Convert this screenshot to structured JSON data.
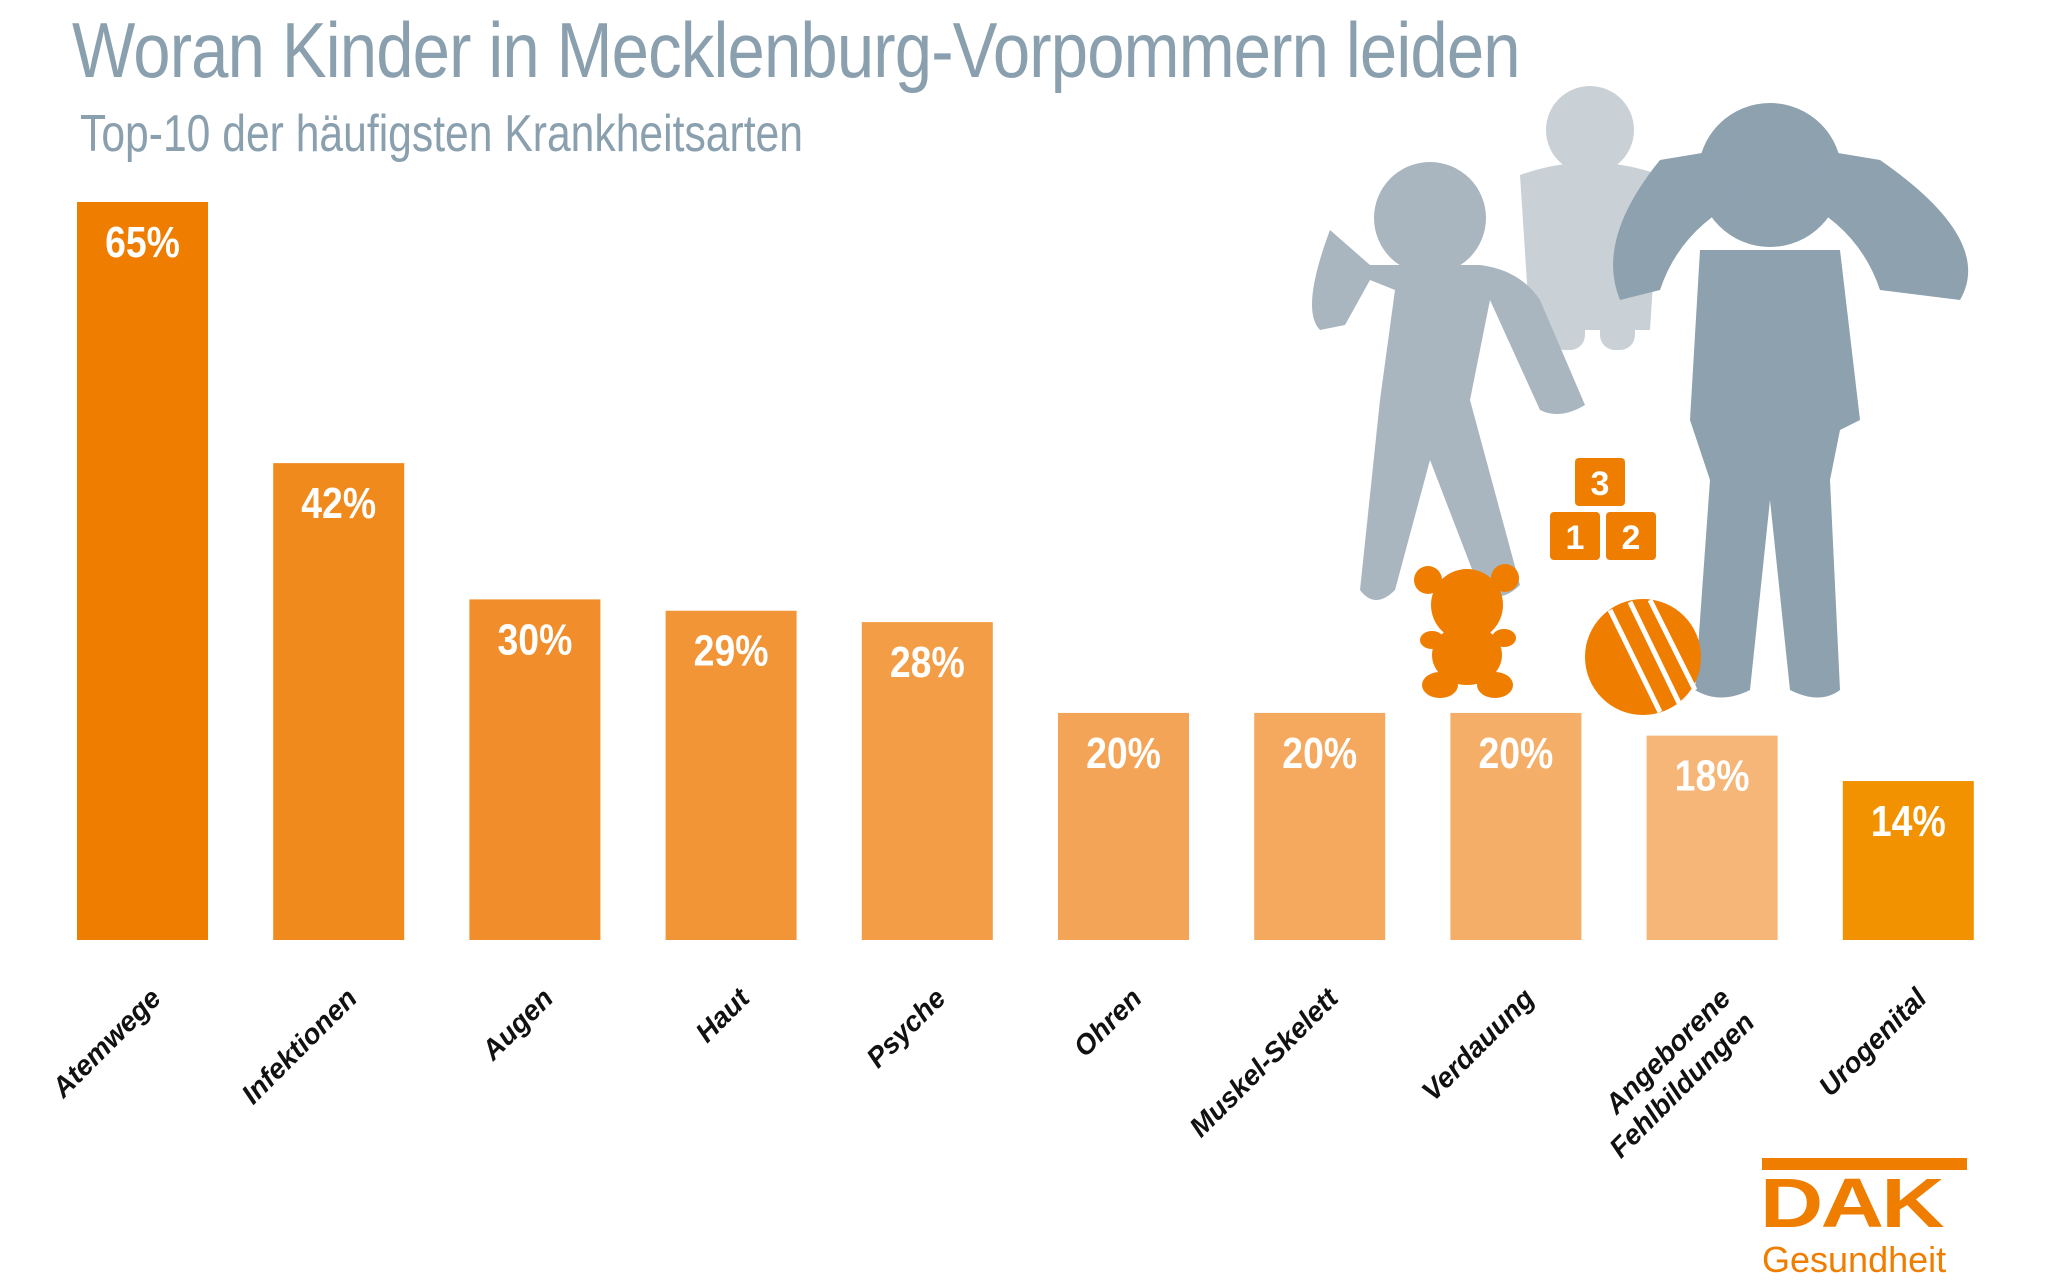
{
  "header": {
    "title": "Woran Kinder in Mecklenburg-Vorpommern leiden",
    "subtitle": "Top-10 der häufigsten Krankheitsarten"
  },
  "logo": {
    "brand": "DAK",
    "tagline": "Gesundheit"
  },
  "illustration": {
    "blocks": [
      "3",
      "1",
      "2"
    ]
  },
  "chart_data": {
    "type": "bar",
    "title": "Woran Kinder in Mecklenburg-Vorpommern leiden",
    "subtitle": "Top-10 der häufigsten Krankheitsarten",
    "categories": [
      "Atemwege",
      "Infektionen",
      "Augen",
      "Haut",
      "Psyche",
      "Ohren",
      "Muskel-Skelett",
      "Verdauung",
      "Angeborene Fehlbildungen",
      "Urogenital"
    ],
    "category_lines": [
      [
        "Atemwege"
      ],
      [
        "Infektionen"
      ],
      [
        "Augen"
      ],
      [
        "Haut"
      ],
      [
        "Psyche"
      ],
      [
        "Ohren"
      ],
      [
        "Muskel-Skelett"
      ],
      [
        "Verdauung"
      ],
      [
        "Angeborene",
        "Fehlbildungen"
      ],
      [
        "Urogenital"
      ]
    ],
    "values": [
      65,
      42,
      30,
      29,
      28,
      20,
      20,
      20,
      18,
      14
    ],
    "labels": [
      "65%",
      "42%",
      "30%",
      "29%",
      "28%",
      "20%",
      "20%",
      "20%",
      "18%",
      "14%"
    ],
    "unit": "%",
    "xlabel": "",
    "ylabel": "",
    "ylim": [
      0,
      65
    ],
    "grid": false,
    "colors": [
      "#ef7d00",
      "#f08a1c",
      "#f18e2b",
      "#f29537",
      "#f39d47",
      "#f3a457",
      "#f4a95f",
      "#f5ae67",
      "#f6b678",
      "#f39200"
    ]
  }
}
